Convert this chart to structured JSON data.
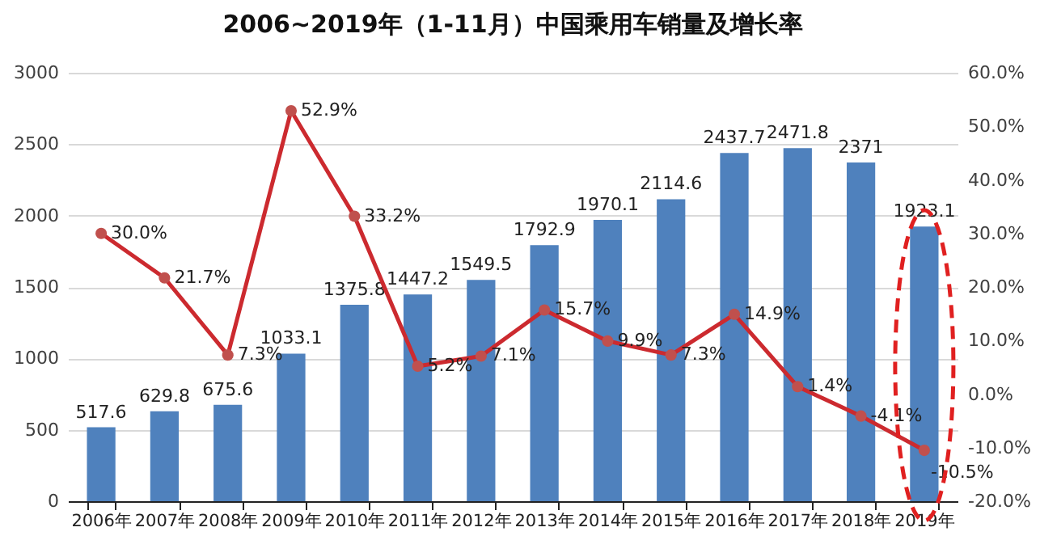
{
  "chart_data": {
    "type": "bar",
    "title": "2006~2019年（1-11月）中国乘用车销量及增长率",
    "categories": [
      "2006年",
      "2007年",
      "2008年",
      "2009年",
      "2010年",
      "2011年",
      "2012年",
      "2013年",
      "2014年",
      "2015年",
      "2016年",
      "2017年",
      "2018年",
      "2019年"
    ],
    "series": [
      {
        "color": "#4f81bd",
        "values": [
          517.6,
          629.8,
          675.6,
          1033.1,
          1375.8,
          1447.2,
          1549.5,
          1792.9,
          1970.1,
          2114.6,
          2437.7,
          2471.8,
          2371,
          1923.1
        ],
        "value_labels": [
          "517.6",
          "629.8",
          "675.6",
          "1033.1",
          "1375.8",
          "1447.2",
          "1549.5",
          "1792.9",
          "1970.1",
          "2114.6",
          "2437.7",
          "2471.8",
          "2371",
          "1923.1"
        ]
      },
      {
        "type": "line",
        "axis": "y2",
        "color": "#cc2a2f",
        "values": [
          30.0,
          21.7,
          7.3,
          52.9,
          33.2,
          5.2,
          7.1,
          15.7,
          9.9,
          7.3,
          14.9,
          1.4,
          -4.1,
          -10.5
        ],
        "value_labels": [
          "30.0%",
          "21.7%",
          "7.3%",
          "52.9%",
          "33.2%",
          "5.2%",
          "7.1%",
          "15.7%",
          "9.9%",
          "7.3%",
          "14.9%",
          "1.4%",
          "-4.1%",
          "-10.5%"
        ]
      }
    ],
    "ylim": [
      0,
      3000
    ],
    "yticks": [
      0,
      500,
      1000,
      1500,
      2000,
      2500,
      3000
    ],
    "y2lim": [
      -20,
      60
    ],
    "y2ticks": [
      {
        "value": -20,
        "label": "-20.0%"
      },
      {
        "value": -10,
        "label": "-10.0%"
      },
      {
        "value": 0,
        "label": "0.0%"
      },
      {
        "value": 10,
        "label": "10.0%"
      },
      {
        "value": 20,
        "label": "20.0%"
      },
      {
        "value": 30,
        "label": "30.0%"
      },
      {
        "value": 40,
        "label": "40.0%"
      },
      {
        "value": 50,
        "label": "50.0%"
      },
      {
        "value": 60,
        "label": "60.0%"
      }
    ],
    "grid": "y",
    "marker": "circle",
    "line_style": "solid"
  }
}
